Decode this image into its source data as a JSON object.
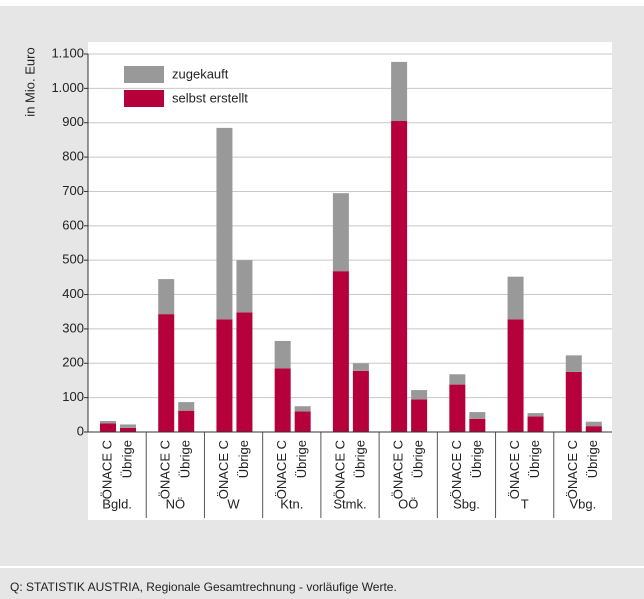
{
  "chart_data": {
    "type": "stacked_bar",
    "y_axis_label": "in Mio. Euro",
    "source": "Q: STATISTIK AUSTRIA, Regionale Gesamtrechnung - vorläufige Werte.",
    "groups": [
      "Bgld.",
      "NÖ",
      "W",
      "Ktn.",
      "Stmk.",
      "OÖ",
      "Sbg.",
      "T",
      "Vbg."
    ],
    "categories": [
      "ÖNACE C",
      "Übrige",
      "ÖNACE C",
      "Übrige",
      "ÖNACE C",
      "Übrige",
      "ÖNACE C",
      "Übrige",
      "ÖNACE C",
      "Übrige",
      "ÖNACE C",
      "Übrige",
      "ÖNACE C",
      "Übrige",
      "ÖNACE C",
      "Übrige",
      "ÖNACE C",
      "Übrige"
    ],
    "series": [
      {
        "name": "selbst erstellt",
        "color": "#b5003c",
        "values": [
          25,
          12,
          343,
          62,
          328,
          348,
          185,
          60,
          468,
          178,
          905,
          95,
          138,
          38,
          328,
          45,
          175,
          17
        ]
      },
      {
        "name": "zugekauft",
        "color": "#999999",
        "values": [
          7,
          10,
          102,
          25,
          557,
          152,
          80,
          15,
          227,
          22,
          172,
          27,
          30,
          20,
          124,
          10,
          48,
          13
        ]
      }
    ],
    "ylim": [
      0,
      1100
    ],
    "yticks": [
      0,
      100,
      200,
      300,
      400,
      500,
      600,
      700,
      800,
      900,
      {
        "value": 1000,
        "label": "1.000"
      },
      {
        "value": 1100,
        "label": "1.100"
      }
    ],
    "grid": true
  }
}
